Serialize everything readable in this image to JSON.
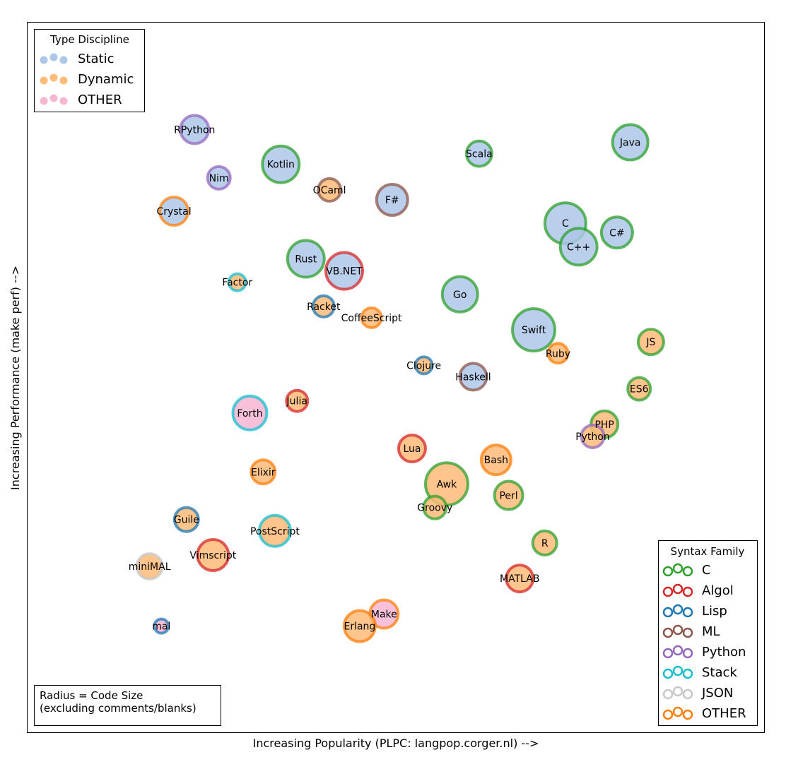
{
  "chart_data": {
    "type": "scatter",
    "xlabel": "Increasing Popularity (PLPC: langpop.corger.nl) -->",
    "ylabel": "Increasing Performance (make perf) -->",
    "xlim": [
      0,
      100
    ],
    "ylim": [
      0,
      100
    ],
    "grid": false,
    "note": [
      "Radius = Code Size",
      "(excluding comments/blanks)"
    ],
    "type_legend": {
      "title": "Type Discipline",
      "placement": "top-left",
      "entries": [
        {
          "label": "Static",
          "color": "#aec7e8"
        },
        {
          "label": "Dynamic",
          "color": "#ffbb78"
        },
        {
          "label": "OTHER",
          "color": "#f7b6d2"
        }
      ]
    },
    "syntax_legend": {
      "title": "Syntax Family",
      "placement": "bottom-right",
      "entries": [
        {
          "label": "C",
          "color": "#2ca02c"
        },
        {
          "label": "Algol",
          "color": "#d62728"
        },
        {
          "label": "Lisp",
          "color": "#1f77b4"
        },
        {
          "label": "ML",
          "color": "#8c564b"
        },
        {
          "label": "Python",
          "color": "#9467bd"
        },
        {
          "label": "Stack",
          "color": "#17becf"
        },
        {
          "label": "JSON",
          "color": "#c7c7c7"
        },
        {
          "label": "OTHER",
          "color": "#ff7f0e"
        }
      ]
    },
    "points": [
      {
        "name": "RPython",
        "x": 22.7,
        "y": 84.9,
        "size": 20,
        "type": "Static",
        "syntax": "Python"
      },
      {
        "name": "Nim",
        "x": 26.0,
        "y": 78.1,
        "size": 16,
        "type": "Static",
        "syntax": "Python"
      },
      {
        "name": "Kotlin",
        "x": 34.4,
        "y": 80.0,
        "size": 26,
        "type": "Static",
        "syntax": "C"
      },
      {
        "name": "OCaml",
        "x": 41.0,
        "y": 76.4,
        "size": 16,
        "type": "Dynamic",
        "syntax": "ML"
      },
      {
        "name": "F#",
        "x": 49.5,
        "y": 75.0,
        "size": 22,
        "type": "Static",
        "syntax": "ML"
      },
      {
        "name": "Scala",
        "x": 61.3,
        "y": 81.5,
        "size": 18,
        "type": "Static",
        "syntax": "C"
      },
      {
        "name": "Java",
        "x": 81.8,
        "y": 83.1,
        "size": 25,
        "type": "Static",
        "syntax": "C"
      },
      {
        "name": "Crystal",
        "x": 19.9,
        "y": 73.4,
        "size": 20,
        "type": "Static",
        "syntax": "OTHER"
      },
      {
        "name": "C",
        "x": 73.0,
        "y": 71.7,
        "size": 29,
        "type": "Static",
        "syntax": "C"
      },
      {
        "name": "C#",
        "x": 80.0,
        "y": 70.4,
        "size": 22,
        "type": "Static",
        "syntax": "C"
      },
      {
        "name": "C++",
        "x": 74.8,
        "y": 68.4,
        "size": 26,
        "type": "Static",
        "syntax": "C"
      },
      {
        "name": "Rust",
        "x": 37.8,
        "y": 66.7,
        "size": 26,
        "type": "Static",
        "syntax": "C"
      },
      {
        "name": "VB.NET",
        "x": 43.0,
        "y": 65.0,
        "size": 26,
        "type": "Static",
        "syntax": "Algol"
      },
      {
        "name": "Factor",
        "x": 28.5,
        "y": 63.4,
        "size": 12,
        "type": "Dynamic",
        "syntax": "Stack"
      },
      {
        "name": "Racket",
        "x": 40.2,
        "y": 60.0,
        "size": 15,
        "type": "Dynamic",
        "syntax": "Lisp"
      },
      {
        "name": "CoffeeScript",
        "x": 46.7,
        "y": 58.4,
        "size": 14,
        "type": "Dynamic",
        "syntax": "OTHER"
      },
      {
        "name": "Go",
        "x": 58.7,
        "y": 61.7,
        "size": 25,
        "type": "Static",
        "syntax": "C"
      },
      {
        "name": "Swift",
        "x": 68.7,
        "y": 56.7,
        "size": 30,
        "type": "Static",
        "syntax": "C"
      },
      {
        "name": "JS",
        "x": 84.6,
        "y": 55.0,
        "size": 18,
        "type": "Dynamic",
        "syntax": "C"
      },
      {
        "name": "Ruby",
        "x": 72.0,
        "y": 53.4,
        "size": 14,
        "type": "Dynamic",
        "syntax": "OTHER"
      },
      {
        "name": "Clojure",
        "x": 53.8,
        "y": 51.7,
        "size": 12,
        "type": "Dynamic",
        "syntax": "Lisp"
      },
      {
        "name": "Haskell",
        "x": 60.5,
        "y": 50.1,
        "size": 19,
        "type": "Static",
        "syntax": "ML"
      },
      {
        "name": "ES6",
        "x": 83.0,
        "y": 48.4,
        "size": 16,
        "type": "Dynamic",
        "syntax": "C"
      },
      {
        "name": "Julia",
        "x": 36.6,
        "y": 46.7,
        "size": 15,
        "type": "Dynamic",
        "syntax": "Algol"
      },
      {
        "name": "Forth",
        "x": 30.2,
        "y": 45.0,
        "size": 24,
        "type": "OTHER",
        "syntax": "Stack"
      },
      {
        "name": "PHP",
        "x": 78.3,
        "y": 43.4,
        "size": 19,
        "type": "Dynamic",
        "syntax": "C"
      },
      {
        "name": "Python",
        "x": 76.7,
        "y": 41.7,
        "size": 16,
        "type": "Dynamic",
        "syntax": "Python"
      },
      {
        "name": "Lua",
        "x": 52.2,
        "y": 40.0,
        "size": 19,
        "type": "Dynamic",
        "syntax": "Algol"
      },
      {
        "name": "Bash",
        "x": 63.6,
        "y": 38.4,
        "size": 21,
        "type": "Dynamic",
        "syntax": "OTHER"
      },
      {
        "name": "Elixir",
        "x": 32.0,
        "y": 36.7,
        "size": 17,
        "type": "Dynamic",
        "syntax": "OTHER"
      },
      {
        "name": "Awk",
        "x": 56.9,
        "y": 35.0,
        "size": 30,
        "type": "Dynamic",
        "syntax": "C"
      },
      {
        "name": "Perl",
        "x": 65.3,
        "y": 33.4,
        "size": 20,
        "type": "Dynamic",
        "syntax": "C"
      },
      {
        "name": "Groovy",
        "x": 55.3,
        "y": 31.7,
        "size": 16,
        "type": "Dynamic",
        "syntax": "C"
      },
      {
        "name": "Guile",
        "x": 21.6,
        "y": 30.0,
        "size": 17,
        "type": "Dynamic",
        "syntax": "Lisp"
      },
      {
        "name": "PostScript",
        "x": 33.6,
        "y": 28.4,
        "size": 22,
        "type": "Dynamic",
        "syntax": "Stack"
      },
      {
        "name": "R",
        "x": 70.2,
        "y": 26.7,
        "size": 17,
        "type": "Dynamic",
        "syntax": "C"
      },
      {
        "name": "Vimscript",
        "x": 25.2,
        "y": 25.0,
        "size": 22,
        "type": "Dynamic",
        "syntax": "Algol"
      },
      {
        "name": "miniMAL",
        "x": 16.6,
        "y": 23.4,
        "size": 18,
        "type": "Dynamic",
        "syntax": "JSON"
      },
      {
        "name": "MATLAB",
        "x": 66.8,
        "y": 21.7,
        "size": 19,
        "type": "Dynamic",
        "syntax": "Algol"
      },
      {
        "name": "Make",
        "x": 48.4,
        "y": 16.7,
        "size": 20,
        "type": "OTHER",
        "syntax": "OTHER"
      },
      {
        "name": "mal",
        "x": 18.2,
        "y": 15.0,
        "size": 10,
        "type": "OTHER",
        "syntax": "Lisp"
      },
      {
        "name": "Erlang",
        "x": 45.1,
        "y": 15.0,
        "size": 22,
        "type": "Dynamic",
        "syntax": "OTHER"
      }
    ]
  }
}
